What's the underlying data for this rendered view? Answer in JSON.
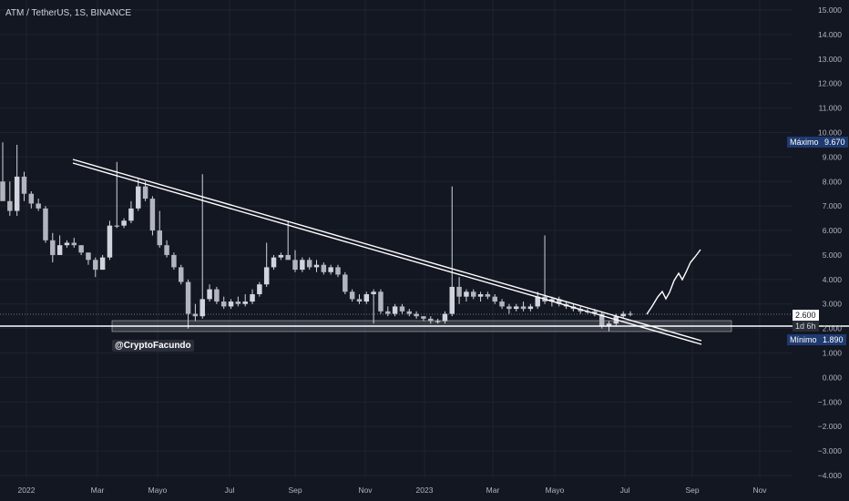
{
  "header": {
    "title": "ATM / TetherUS, 1S, BINANCE"
  },
  "watermark": "@CryptoFacundo",
  "price_scale": {
    "ticks": [
      "15.000",
      "14.000",
      "13.000",
      "12.000",
      "11.000",
      "10.000",
      "9.000",
      "8.000",
      "7.000",
      "6.000",
      "5.000",
      "4.000",
      "3.000",
      "2.000",
      "1.000",
      "0.000",
      "−1.000",
      "−2.000",
      "−3.000",
      "−4.000"
    ],
    "max_label": "Máximo",
    "max_value": "9.670",
    "min_label": "Mínimo",
    "min_value": "1.890",
    "last_price": "2.600",
    "countdown": "1d 6h"
  },
  "time_scale": {
    "ticks": [
      "2022",
      "Mar",
      "Mayo",
      "Jul",
      "Sep",
      "Nov",
      "2023",
      "Mar",
      "Mayo",
      "Jul",
      "Sep",
      "Nov"
    ]
  },
  "colors": {
    "background": "#131722",
    "candle": "#d1d4dc",
    "line": "#ffffff",
    "badge_blue": "#1e3a70"
  },
  "chart_data": {
    "type": "candlestick",
    "title": "ATM / TetherUS, 1S, BINANCE",
    "ylim": [
      -4,
      15
    ],
    "candles": [
      [
        8.0,
        9.6,
        7.3,
        7.2
      ],
      [
        7.2,
        8.0,
        6.6,
        6.8
      ],
      [
        6.8,
        9.5,
        6.6,
        8.2
      ],
      [
        8.2,
        8.4,
        7.2,
        7.5
      ],
      [
        7.5,
        7.6,
        6.9,
        7.1
      ],
      [
        7.1,
        7.3,
        6.8,
        6.9
      ],
      [
        6.9,
        7.0,
        5.5,
        5.6
      ],
      [
        5.6,
        5.9,
        4.7,
        5.0
      ],
      [
        5.0,
        5.8,
        5.0,
        5.4
      ],
      [
        5.4,
        5.6,
        5.3,
        5.5
      ],
      [
        5.5,
        5.7,
        5.3,
        5.4
      ],
      [
        5.4,
        5.4,
        5.0,
        5.1
      ],
      [
        5.1,
        5.1,
        4.6,
        4.8
      ],
      [
        4.8,
        4.9,
        4.1,
        4.4
      ],
      [
        4.4,
        5.0,
        4.4,
        4.9
      ],
      [
        4.9,
        6.4,
        4.8,
        6.2
      ],
      [
        6.2,
        8.8,
        6.1,
        6.2
      ],
      [
        6.2,
        6.5,
        6.1,
        6.4
      ],
      [
        6.4,
        7.2,
        6.3,
        6.9
      ],
      [
        6.9,
        8.1,
        6.8,
        7.8
      ],
      [
        7.8,
        8.0,
        7.2,
        7.3
      ],
      [
        7.3,
        7.4,
        5.8,
        6.0
      ],
      [
        6.0,
        6.8,
        5.3,
        5.4
      ],
      [
        5.4,
        5.6,
        4.9,
        5.0
      ],
      [
        5.0,
        5.1,
        4.4,
        4.5
      ],
      [
        4.5,
        4.6,
        3.8,
        3.9
      ],
      [
        3.9,
        4.0,
        2.0,
        2.6
      ],
      [
        2.6,
        3.0,
        2.3,
        2.5
      ],
      [
        2.5,
        8.3,
        2.4,
        3.2
      ],
      [
        3.2,
        3.8,
        3.1,
        3.6
      ],
      [
        3.6,
        3.7,
        3.0,
        3.1
      ],
      [
        3.1,
        3.3,
        2.8,
        2.9
      ],
      [
        2.9,
        3.2,
        2.8,
        3.1
      ],
      [
        3.1,
        3.3,
        2.9,
        3.0
      ],
      [
        3.0,
        3.4,
        2.9,
        3.1
      ],
      [
        3.1,
        3.6,
        3.0,
        3.4
      ],
      [
        3.4,
        3.9,
        3.3,
        3.8
      ],
      [
        3.8,
        5.5,
        3.7,
        4.5
      ],
      [
        4.5,
        5.0,
        4.4,
        4.9
      ],
      [
        4.9,
        5.1,
        4.8,
        5.0
      ],
      [
        5.0,
        6.4,
        4.9,
        4.8
      ],
      [
        4.8,
        5.2,
        4.3,
        4.4
      ],
      [
        4.4,
        4.9,
        4.3,
        4.8
      ],
      [
        4.8,
        4.9,
        4.4,
        4.5
      ],
      [
        4.5,
        4.8,
        4.3,
        4.6
      ],
      [
        4.6,
        4.7,
        4.2,
        4.3
      ],
      [
        4.3,
        4.6,
        4.2,
        4.5
      ],
      [
        4.5,
        4.6,
        4.1,
        4.2
      ],
      [
        4.2,
        4.3,
        3.4,
        3.5
      ],
      [
        3.5,
        3.6,
        3.1,
        3.2
      ],
      [
        3.2,
        3.4,
        3.0,
        3.1
      ],
      [
        3.1,
        3.5,
        3.0,
        3.4
      ],
      [
        3.4,
        3.6,
        2.2,
        3.5
      ],
      [
        3.5,
        3.6,
        2.6,
        2.7
      ],
      [
        2.7,
        2.9,
        2.5,
        2.6
      ],
      [
        2.6,
        3.0,
        2.5,
        2.9
      ],
      [
        2.9,
        3.0,
        2.6,
        2.7
      ],
      [
        2.7,
        2.8,
        2.5,
        2.6
      ],
      [
        2.6,
        2.7,
        2.4,
        2.5
      ],
      [
        2.5,
        2.5,
        2.3,
        2.4
      ],
      [
        2.4,
        2.5,
        2.2,
        2.3
      ],
      [
        2.3,
        2.4,
        2.2,
        2.3
      ],
      [
        2.3,
        2.7,
        2.2,
        2.6
      ],
      [
        2.6,
        7.8,
        2.5,
        3.7
      ],
      [
        3.7,
        4.1,
        3.0,
        3.3
      ],
      [
        3.3,
        3.6,
        3.1,
        3.5
      ],
      [
        3.5,
        3.6,
        3.2,
        3.3
      ],
      [
        3.3,
        3.5,
        3.1,
        3.4
      ],
      [
        3.4,
        3.5,
        3.2,
        3.3
      ],
      [
        3.3,
        3.4,
        3.0,
        3.1
      ],
      [
        3.1,
        3.2,
        2.8,
        2.9
      ],
      [
        2.9,
        3.0,
        2.6,
        2.8
      ],
      [
        2.8,
        3.0,
        2.7,
        2.9
      ],
      [
        2.9,
        3.1,
        2.7,
        2.8
      ],
      [
        2.8,
        3.0,
        2.7,
        2.9
      ],
      [
        2.9,
        3.5,
        2.8,
        3.3
      ],
      [
        3.3,
        5.8,
        3.0,
        3.1
      ],
      [
        3.1,
        3.3,
        2.9,
        3.2
      ],
      [
        3.2,
        3.3,
        2.9,
        3.0
      ],
      [
        3.0,
        3.1,
        2.8,
        2.9
      ],
      [
        2.9,
        3.0,
        2.7,
        2.8
      ],
      [
        2.8,
        2.9,
        2.6,
        2.7
      ],
      [
        2.7,
        2.8,
        2.6,
        2.7
      ],
      [
        2.7,
        2.8,
        2.5,
        2.6
      ],
      [
        2.6,
        2.7,
        2.0,
        2.1
      ],
      [
        2.1,
        2.3,
        1.89,
        2.2
      ],
      [
        2.2,
        2.6,
        2.1,
        2.5
      ],
      [
        2.5,
        2.7,
        2.4,
        2.6
      ],
      [
        2.6,
        2.7,
        2.5,
        2.6
      ]
    ],
    "annotations": [
      "Máximo 9.670",
      "Mínimo 1.890",
      "2.600",
      "1d 6h"
    ]
  }
}
